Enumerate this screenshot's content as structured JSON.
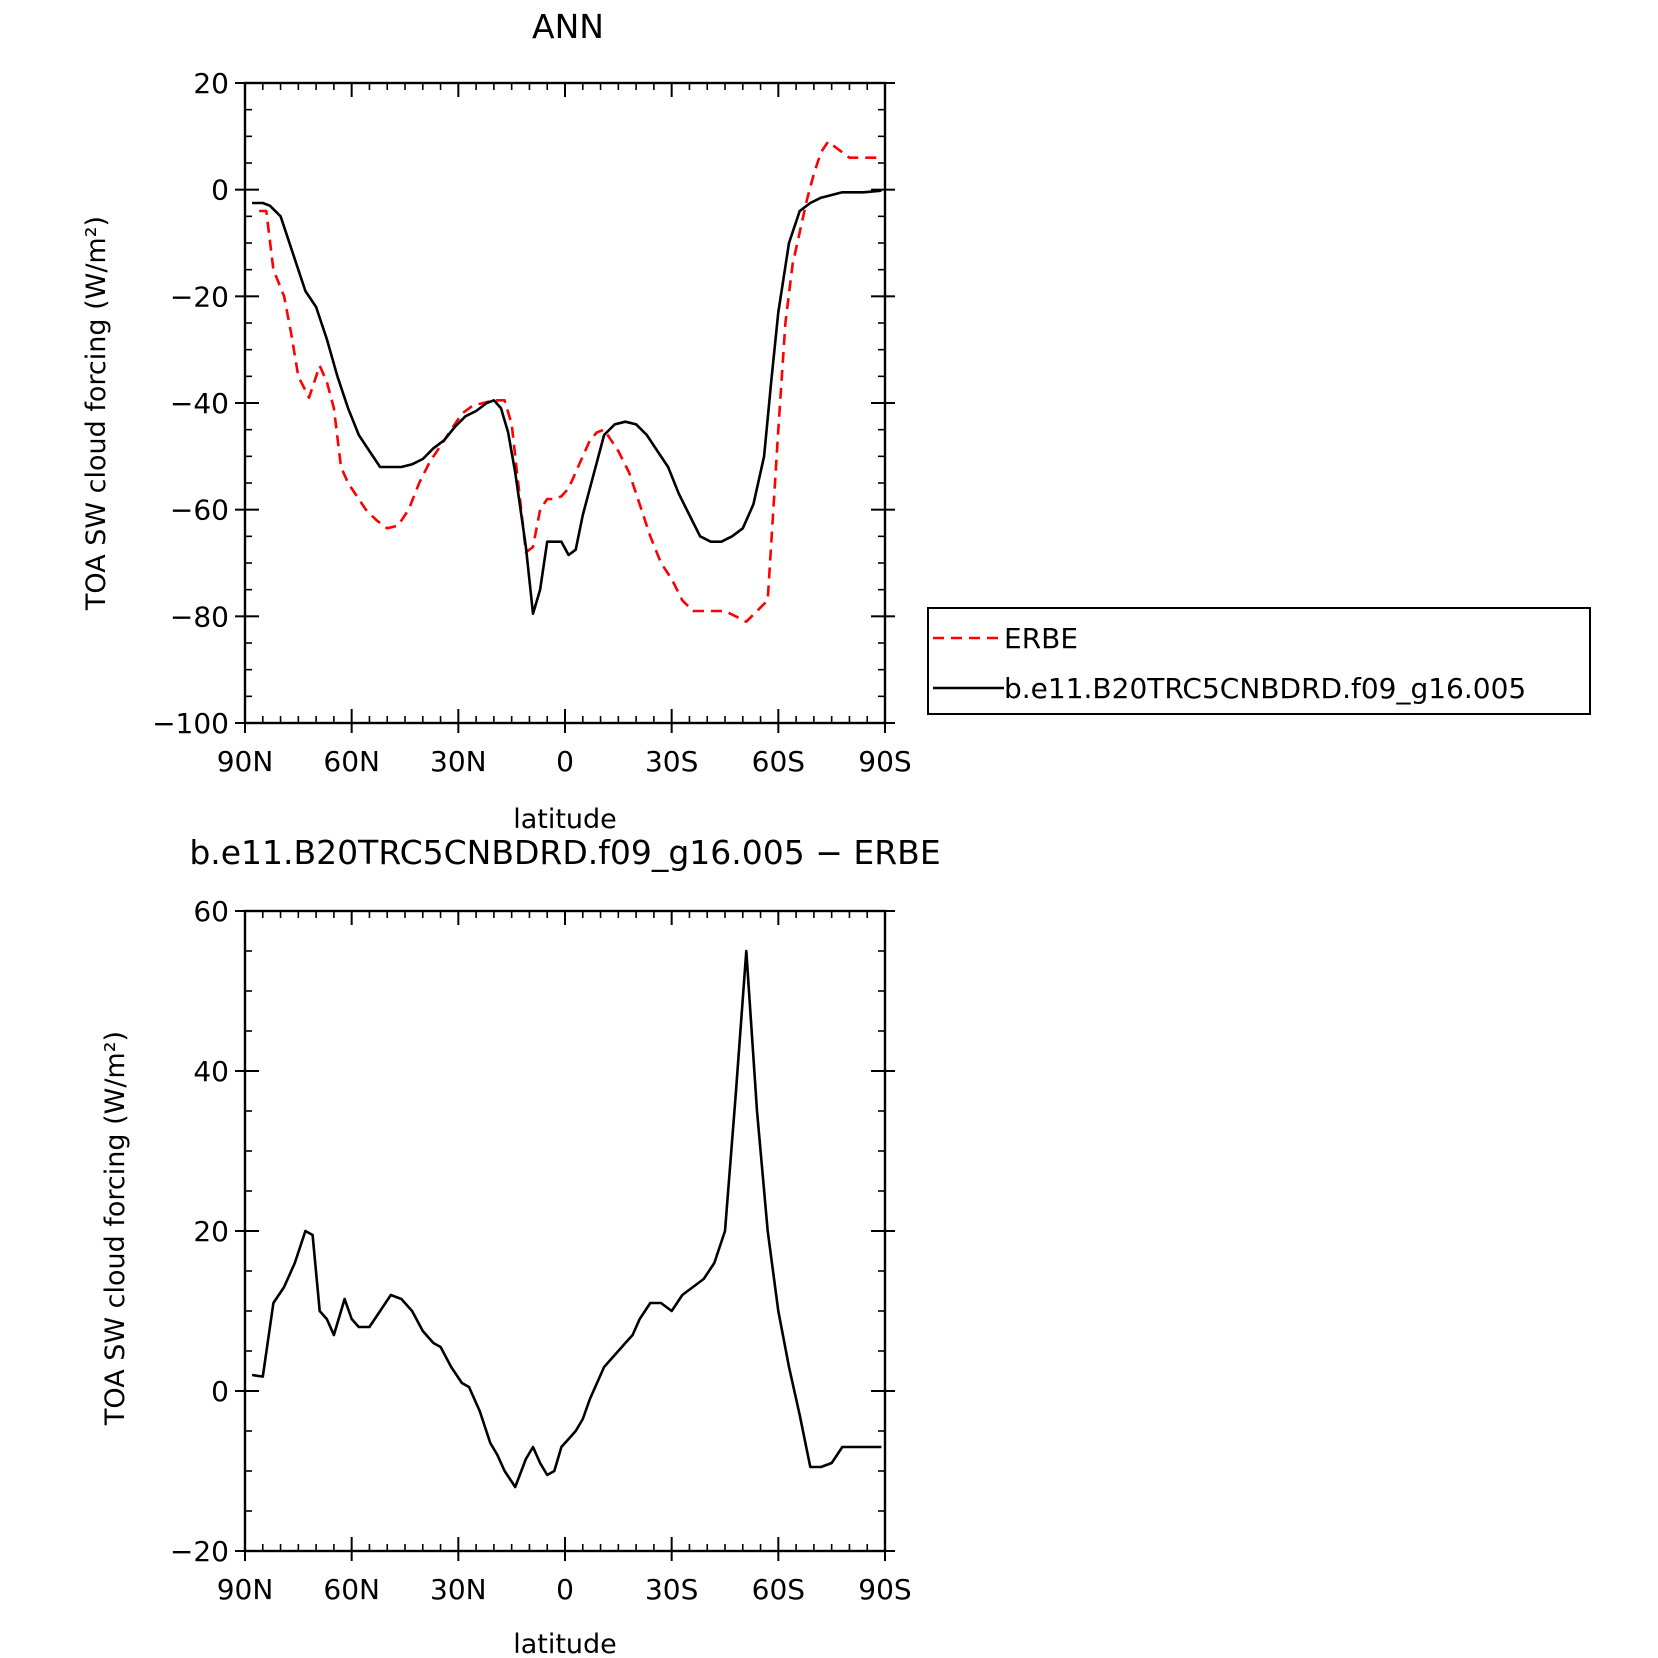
{
  "chart_data": [
    {
      "type": "line",
      "title": "ANN",
      "xlabel": "latitude",
      "ylabel": "TOA SW cloud forcing (W/m²)",
      "xticks": [
        "90N",
        "60N",
        "30N",
        "0",
        "30S",
        "60S",
        "90S"
      ],
      "xlim": [
        -90,
        90
      ],
      "ylim": [
        -100,
        20
      ],
      "yticks": [
        20,
        0,
        -20,
        -40,
        -60,
        -80,
        -100
      ],
      "yticklabels": [
        "20",
        "0",
        "−20",
        "−40",
        "−60",
        "−80",
        "−100"
      ],
      "x_note": "x values are latitude in degrees, negative = North, positive = South",
      "legend_position": "right",
      "series": [
        {
          "name": "ERBE",
          "color": "#ff0000",
          "style": "dashed",
          "x": [
            -86,
            -84,
            -82,
            -79,
            -77,
            -75,
            -72,
            -69,
            -67,
            -65,
            -63,
            -61,
            -59,
            -56,
            -53,
            -50,
            -47,
            -44,
            -41,
            -38,
            -35,
            -32,
            -29,
            -26,
            -23,
            -20,
            -17,
            -15,
            -13,
            -11,
            -9,
            -7,
            -5,
            -3,
            -1,
            1,
            3,
            5,
            7,
            9,
            11,
            13,
            15,
            18,
            21,
            24,
            27,
            30,
            33,
            36,
            39,
            42,
            45,
            48,
            51,
            54,
            57,
            60,
            62,
            64,
            66,
            68,
            70,
            72,
            74,
            76,
            78,
            80,
            82,
            84,
            86,
            88
          ],
          "y": [
            -4,
            -4,
            -15,
            -20,
            -27,
            -35,
            -39,
            -33,
            -36,
            -41,
            -52,
            -55,
            -57,
            -60,
            -62,
            -63.5,
            -63,
            -60,
            -55,
            -51,
            -48,
            -45,
            -42,
            -40.5,
            -40,
            -39.5,
            -39.5,
            -44,
            -56,
            -68,
            -67,
            -60,
            -58,
            -58,
            -57.5,
            -56,
            -53,
            -50,
            -47,
            -45.5,
            -45,
            -47,
            -49,
            -53,
            -59,
            -65,
            -70,
            -73,
            -77,
            -79,
            -79,
            -79,
            -79,
            -80,
            -81,
            -79,
            -77,
            -45,
            -25,
            -14,
            -8,
            -2,
            3,
            7,
            9,
            8,
            7,
            6,
            6,
            6,
            6,
            6
          ],
          "y_note": "ERBE series ends near 88S at ~6"
        },
        {
          "name": "b.e11.B20TRC5CNBDRD.f09_g16.005",
          "color": "#000000",
          "style": "solid",
          "x": [
            -88,
            -85,
            -83,
            -80,
            -78,
            -75,
            -73,
            -70,
            -67,
            -64,
            -61,
            -58,
            -55,
            -52,
            -49,
            -46,
            -43,
            -40,
            -37,
            -34,
            -31,
            -28,
            -25,
            -22,
            -20,
            -18,
            -16,
            -14,
            -11,
            -9,
            -7,
            -5,
            -3,
            -1,
            1,
            3,
            5,
            7,
            9,
            11,
            14,
            17,
            20,
            23,
            26,
            29,
            32,
            35,
            38,
            41,
            44,
            47,
            50,
            53,
            56,
            58,
            60,
            63,
            66,
            69,
            72,
            75,
            78,
            81,
            84,
            87,
            89
          ],
          "y": [
            -2.5,
            -2.5,
            -3,
            -5,
            -9,
            -15,
            -19,
            -22,
            -28,
            -35,
            -41,
            -46,
            -49,
            -52,
            -52,
            -52,
            -51.5,
            -50.5,
            -48.5,
            -47,
            -44.5,
            -42.5,
            -41.5,
            -40,
            -39.5,
            -41,
            -45.5,
            -53,
            -67,
            -79.5,
            -75,
            -66,
            -66,
            -66,
            -68.5,
            -67.5,
            -61,
            -56,
            -51,
            -46,
            -44,
            -43.5,
            -44,
            -46,
            -49,
            -52,
            -57,
            -61,
            -65,
            -66,
            -66,
            -65,
            -63.5,
            -59,
            -50,
            -36,
            -23,
            -10,
            -4,
            -2.5,
            -1.5,
            -1,
            -0.5,
            -0.5,
            -0.5,
            -0.3,
            -0.2
          ],
          "y_note": "approximate read from gridlines"
        }
      ]
    },
    {
      "type": "line",
      "title": "b.e11.B20TRC5CNBDRD.f09_g16.005 − ERBE",
      "xlabel": "latitude",
      "ylabel": "TOA SW cloud forcing (W/m²)",
      "xticks": [
        "90N",
        "60N",
        "30N",
        "0",
        "30S",
        "60S",
        "90S"
      ],
      "xlim": [
        -90,
        90
      ],
      "ylim": [
        -20,
        60
      ],
      "yticks": [
        60,
        40,
        20,
        0,
        -20
      ],
      "yticklabels": [
        "60",
        "40",
        "20",
        "0",
        "−20"
      ],
      "series": [
        {
          "color": "#000000",
          "style": "solid",
          "x": [
            -88,
            -85,
            -82,
            -79,
            -76,
            -73,
            -71,
            -69,
            -67,
            -65,
            -62,
            -60,
            -58,
            -55,
            -52,
            -49,
            -46,
            -43,
            -40,
            -37,
            -35,
            -32,
            -29,
            -27,
            -24,
            -21,
            -19,
            -17,
            -14,
            -11,
            -9,
            -7,
            -5,
            -3,
            -1,
            1,
            3,
            5,
            7,
            9,
            11,
            13,
            15,
            17,
            19,
            21,
            24,
            27,
            30,
            33,
            36,
            39,
            42,
            45,
            48,
            51,
            54,
            57,
            60,
            63,
            66,
            69,
            72,
            75,
            78,
            81,
            84,
            87,
            89
          ],
          "y": [
            2,
            1.8,
            11,
            13,
            16,
            20,
            19.5,
            10,
            9,
            7,
            11.5,
            9,
            8,
            8,
            10,
            12,
            11.5,
            10,
            7.5,
            6,
            5.5,
            3,
            1,
            0.5,
            -2.5,
            -6.5,
            -8,
            -10,
            -12,
            -8.5,
            -7,
            -9,
            -10.5,
            -10,
            -7,
            -6,
            -5,
            -3.5,
            -1,
            1,
            3,
            4,
            5,
            6,
            7,
            9,
            11,
            11,
            10,
            12,
            13,
            14,
            16,
            20,
            37,
            55,
            35,
            20,
            10,
            3,
            -3,
            -9.5,
            -9.5,
            -9,
            -7,
            -7,
            -7,
            -7,
            -7
          ],
          "y_note": "approximate read from gridlines"
        }
      ]
    }
  ],
  "legend": {
    "entries": [
      {
        "label": "ERBE",
        "color": "#ff0000",
        "style": "dashed"
      },
      {
        "label": "b.e11.B20TRC5CNBDRD.f09_g16.005",
        "color": "#000000",
        "style": "solid"
      }
    ]
  }
}
